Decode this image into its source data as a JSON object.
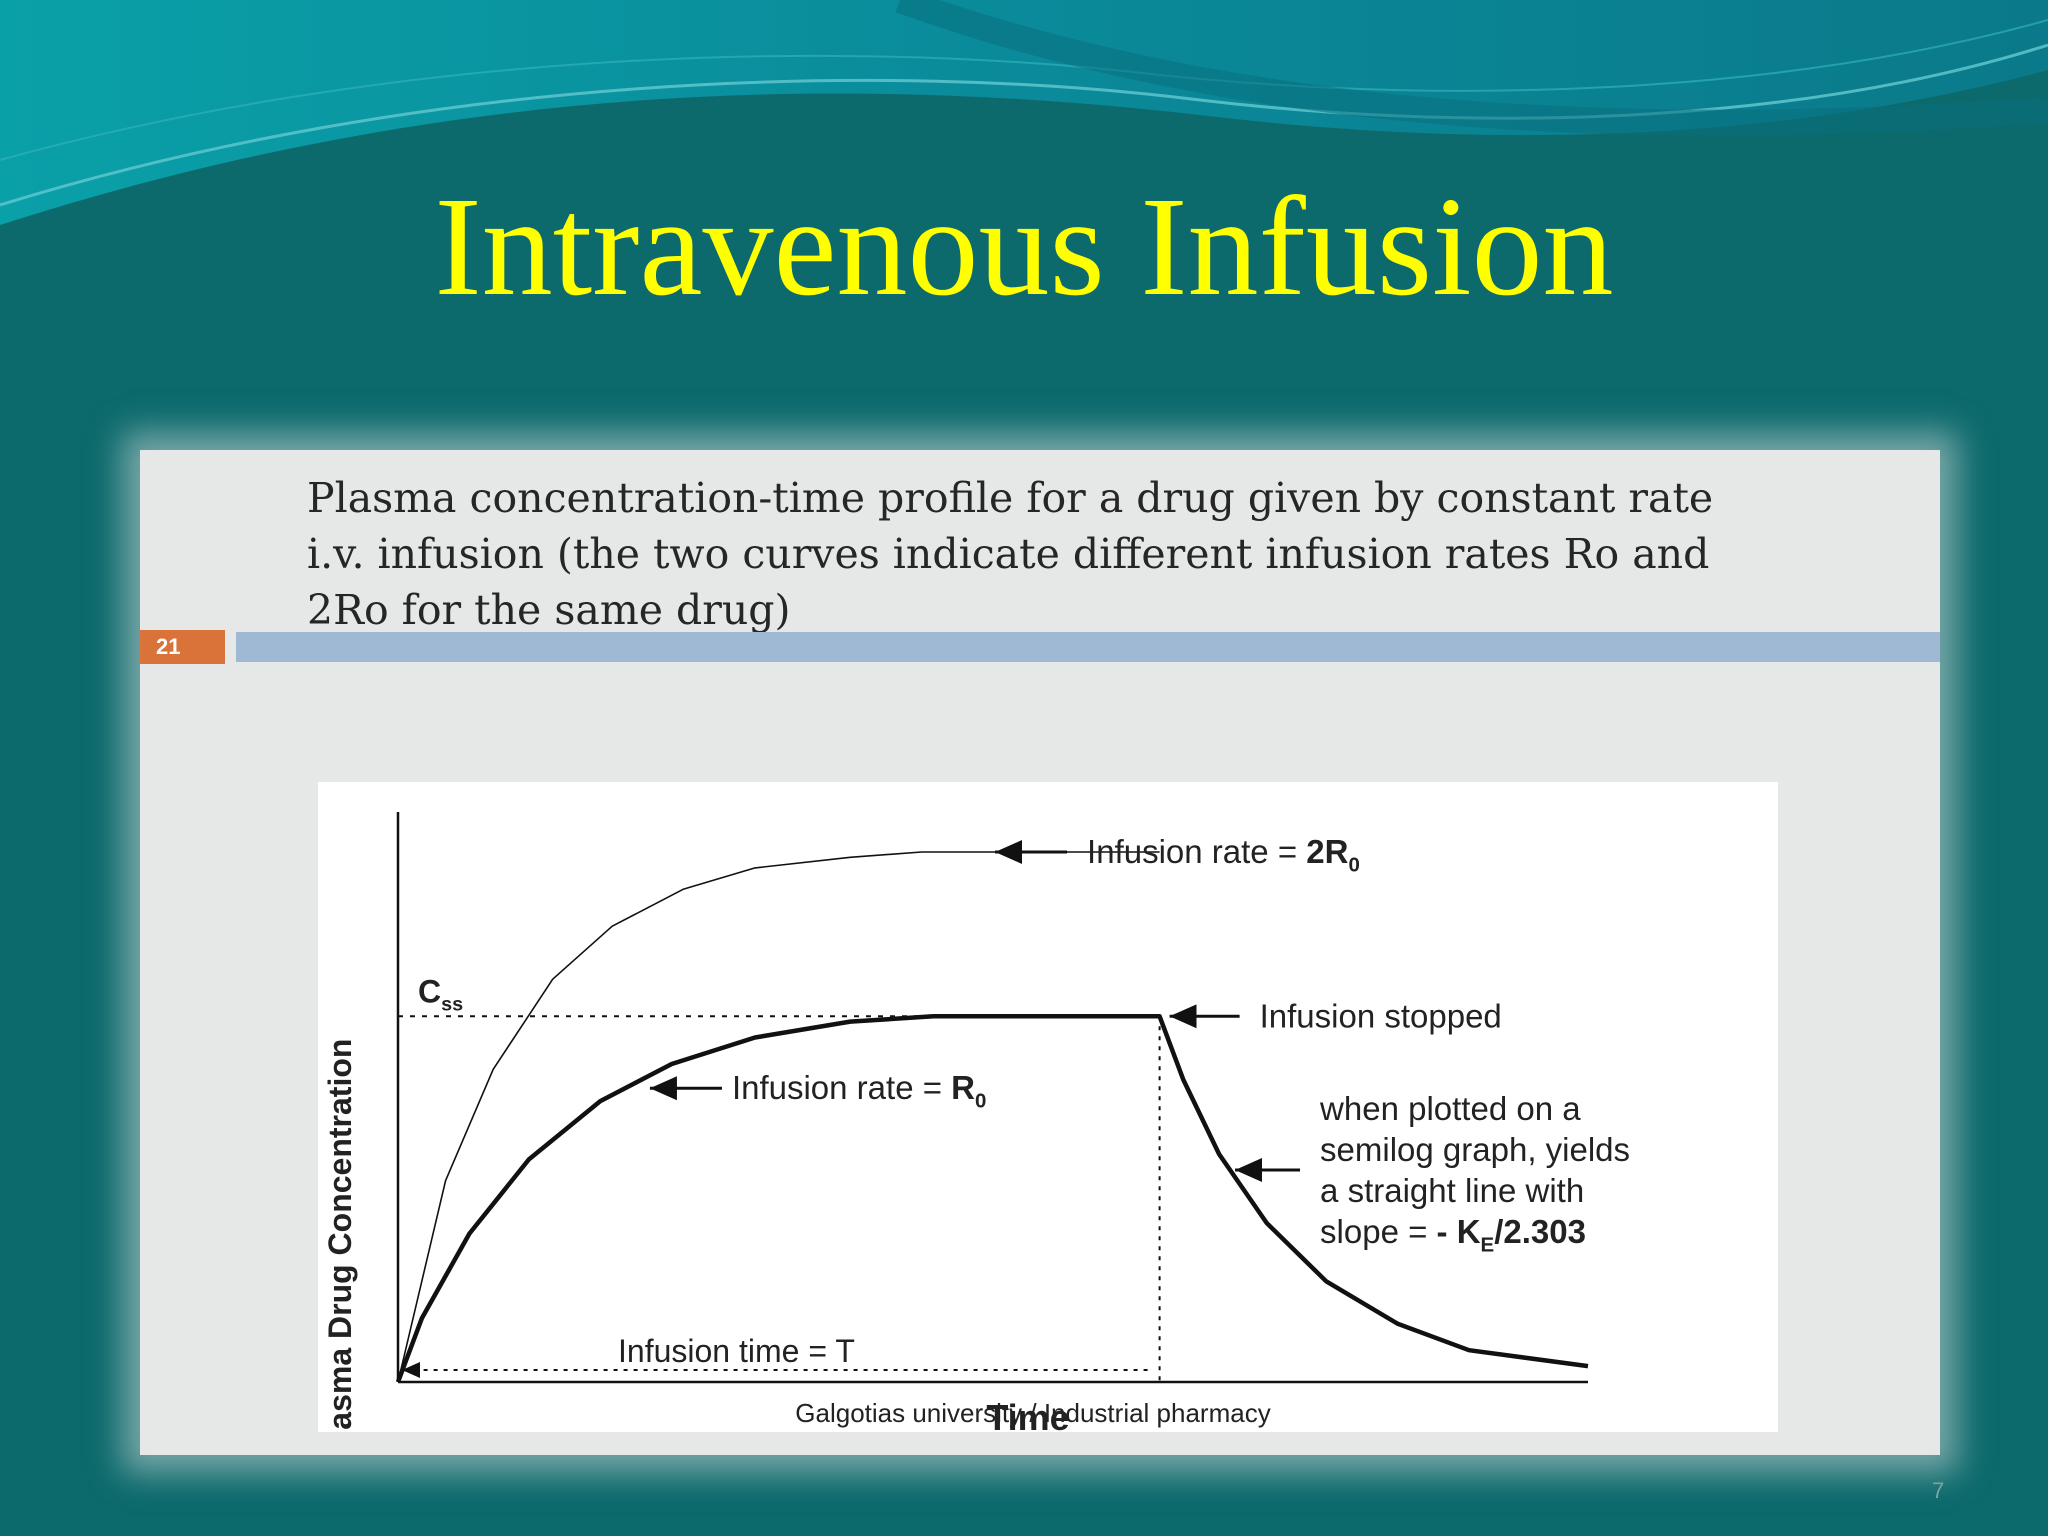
{
  "slide": {
    "title": "Intravenous Infusion",
    "caption": "Plasma concentration-time profile for a drug given by constant rate i.v. infusion (the two curves indicate different infusion rates Ro and 2Ro for the same drug)",
    "slide_number": "21",
    "footer": "Galgotias university / Industrial pharmacy",
    "page_mark": "7"
  },
  "colors": {
    "background": "#0c6a6c",
    "title": "#ffff00",
    "panel": "#e6e8e8",
    "number_badge": "#d9733a",
    "divider": "#9fb8d4"
  },
  "chart_data": {
    "type": "line",
    "xlabel": "Time",
    "ylabel": "Plasma Drug Concentration",
    "xlim": [
      0,
      1
    ],
    "ylim": [
      0,
      1
    ],
    "grid": false,
    "css_label": "C",
    "css_sub": "ss",
    "css_level": 0.69,
    "infusion_time_label": "Infusion time = T",
    "infusion_stop_x": 0.64,
    "series": [
      {
        "name": "Infusion rate = 2R0",
        "x": [
          0,
          0.04,
          0.08,
          0.13,
          0.18,
          0.24,
          0.3,
          0.38,
          0.44,
          0.54,
          0.64
        ],
        "y": [
          0,
          0.38,
          0.59,
          0.76,
          0.86,
          0.93,
          0.97,
          0.99,
          1.0,
          1.0,
          1.0
        ]
      },
      {
        "name": "Infusion rate = R0",
        "x": [
          0,
          0.02,
          0.06,
          0.11,
          0.17,
          0.23,
          0.3,
          0.38,
          0.45,
          0.54,
          0.64,
          0.66,
          0.69,
          0.73,
          0.78,
          0.84,
          0.9,
          1.0
        ],
        "y": [
          0,
          0.12,
          0.28,
          0.42,
          0.53,
          0.6,
          0.65,
          0.68,
          0.69,
          0.69,
          0.69,
          0.57,
          0.43,
          0.3,
          0.19,
          0.11,
          0.06,
          0.03
        ]
      }
    ],
    "annotations": [
      {
        "id": "rate2",
        "text": "Infusion rate = ",
        "bold": "2R",
        "sub": "0",
        "tx": 0.495,
        "ty": 1.0
      },
      {
        "id": "stopped",
        "text": "Infusion stopped",
        "tx": 0.64,
        "ty": 0.69
      },
      {
        "id": "rate1",
        "text": "Infusion rate = ",
        "bold": "R",
        "sub": "0",
        "tx": 0.205,
        "ty": 0.56
      },
      {
        "id": "semilog",
        "lines": [
          "when plotted on a",
          "semilog graph, yields",
          "a straight line with",
          "slope = "
        ],
        "bold": "- K",
        "sub": "E",
        "bold_tail": "/2.303",
        "tx": 0.695,
        "ty": 0.4
      }
    ]
  }
}
